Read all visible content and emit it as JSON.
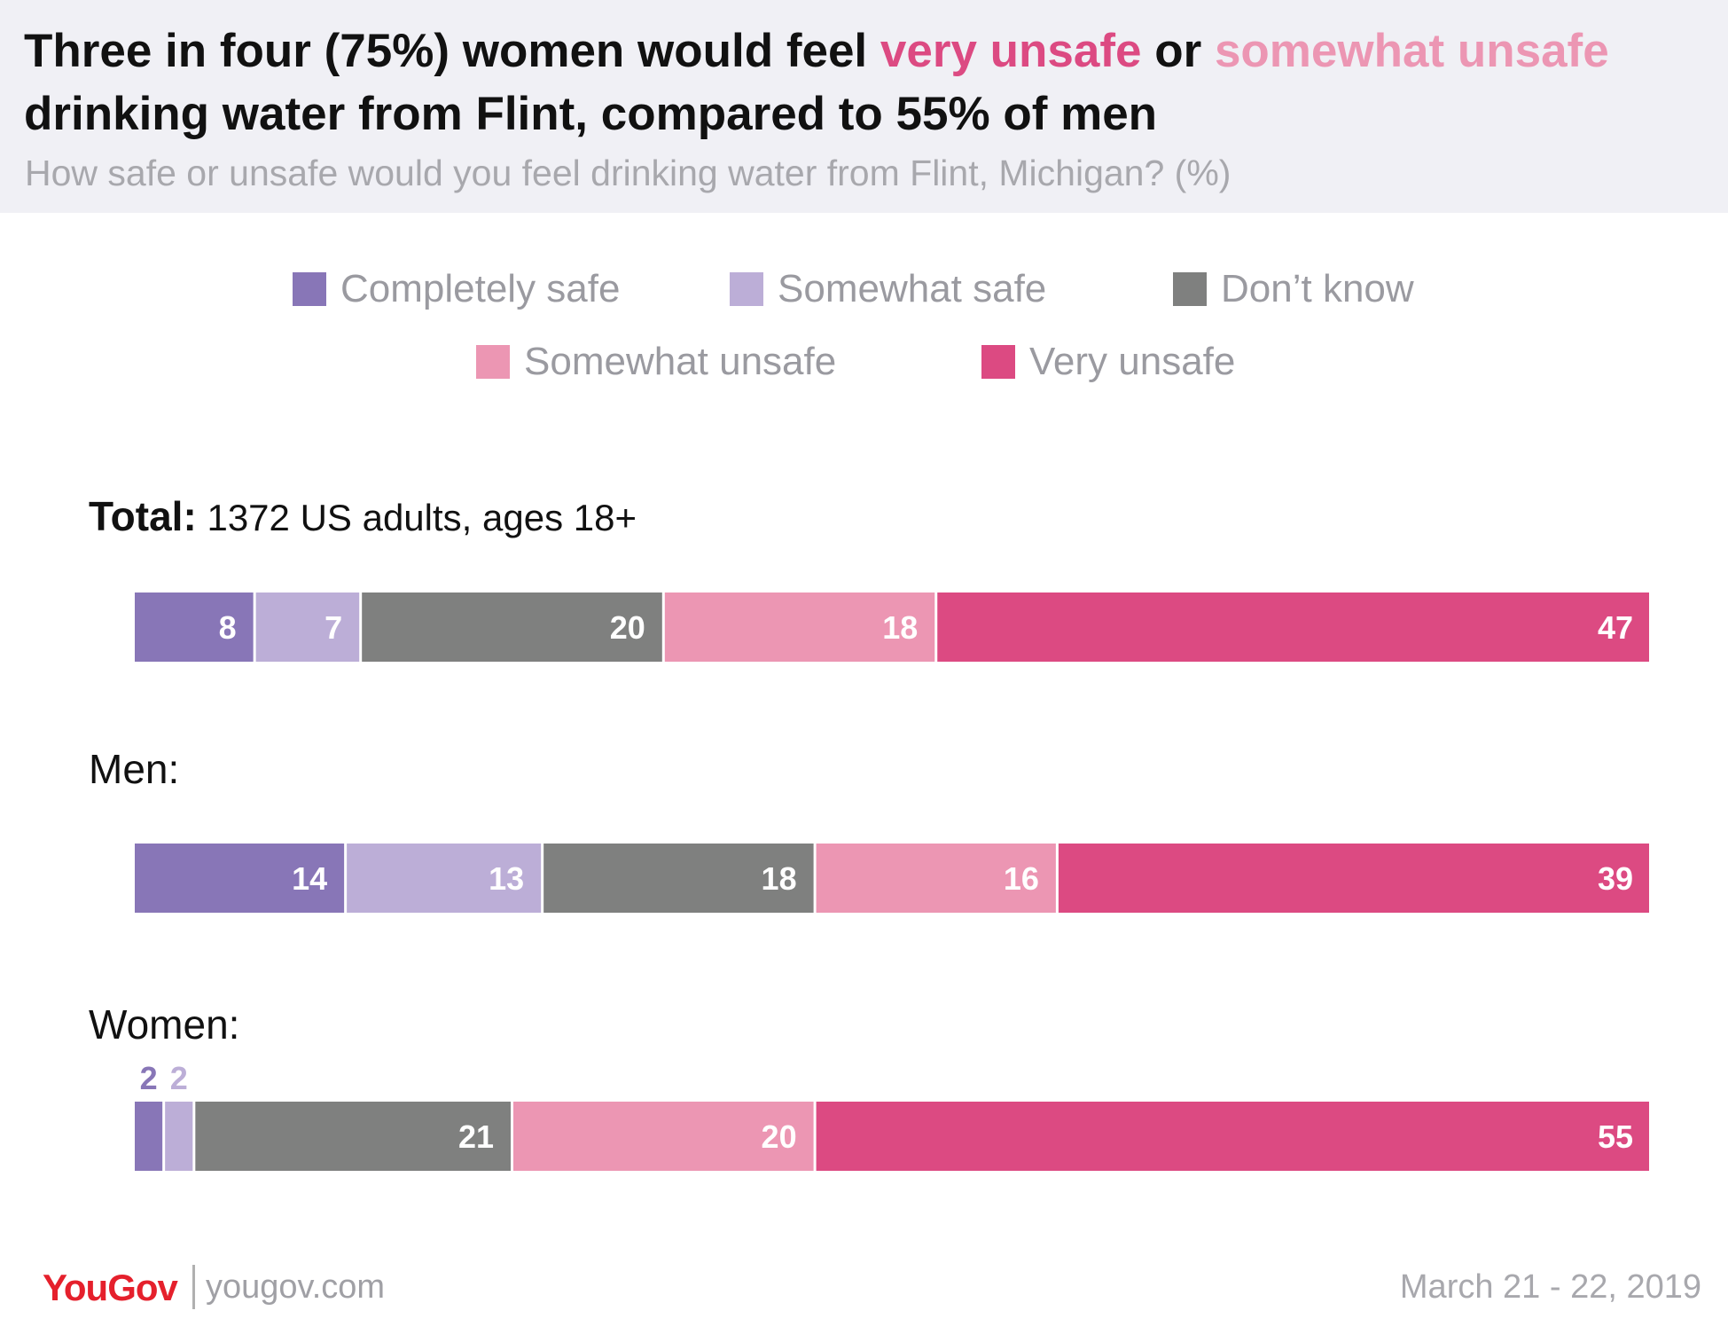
{
  "title": {
    "part1": "Three in four (75%) women would feel ",
    "highlight1": "very unsafe",
    "part2": " or ",
    "highlight2": "somewhat unsafe",
    "part3": " drinking water from Flint, compared to 55% of men"
  },
  "subtitle": "How safe or unsafe would you feel drinking water from Flint, Michigan? (%)",
  "colors": {
    "completely_safe": "#8876b7",
    "somewhat_safe": "#bcaed7",
    "dont_know": "#7f807f",
    "somewhat_unsafe": "#ec96b3",
    "very_unsafe": "#dc4a82",
    "highlight_very_unsafe": "#dc4a82",
    "highlight_somewhat_unsafe": "#ec96b3"
  },
  "legend": [
    {
      "label": "Completely safe"
    },
    {
      "label": "Somewhat safe"
    },
    {
      "label": "Don’t know"
    },
    {
      "label": "Somewhat unsafe"
    },
    {
      "label": "Very unsafe"
    }
  ],
  "chart_data": {
    "type": "bar",
    "orientation": "horizontal",
    "stacked": true,
    "categories": [
      "Total",
      "Men",
      "Women"
    ],
    "category_labels": [
      {
        "bold": "Total:",
        "light": " 1372 US adults, ages 18+"
      },
      {
        "bold": "Men:",
        "light": ""
      },
      {
        "bold": "Women:",
        "light": ""
      }
    ],
    "series": [
      {
        "name": "Completely safe",
        "values": [
          8,
          14,
          2
        ]
      },
      {
        "name": "Somewhat safe",
        "values": [
          7,
          13,
          2
        ]
      },
      {
        "name": "Don’t know",
        "values": [
          20,
          18,
          21
        ]
      },
      {
        "name": "Somewhat unsafe",
        "values": [
          18,
          16,
          20
        ]
      },
      {
        "name": "Very unsafe",
        "values": [
          47,
          39,
          55
        ]
      }
    ],
    "xlim": [
      0,
      100
    ],
    "grid": false,
    "legend_position": "top-center"
  },
  "footer": {
    "brand": "YouGov",
    "url": "yougov.com",
    "date": "March 21 - 22, 2019"
  }
}
